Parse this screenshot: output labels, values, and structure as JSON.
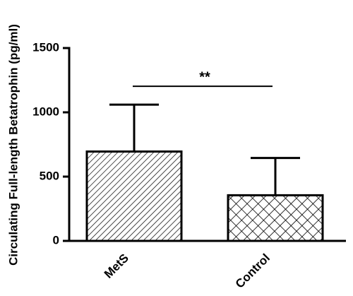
{
  "chart_data": {
    "type": "bar",
    "y_label": "Circulating Full-length Betatrophin (pg/ml)",
    "categories": [
      "MetS",
      "Control"
    ],
    "values": [
      695,
      355
    ],
    "errors": [
      365,
      290
    ],
    "patterns": [
      "diagonal",
      "crosshatch"
    ],
    "color": "#000000",
    "ylim": [
      0,
      1500
    ],
    "yticks": [
      0,
      500,
      1000,
      1500
    ],
    "annotations": [
      {
        "text": "**",
        "between": [
          0,
          1
        ]
      }
    ]
  }
}
